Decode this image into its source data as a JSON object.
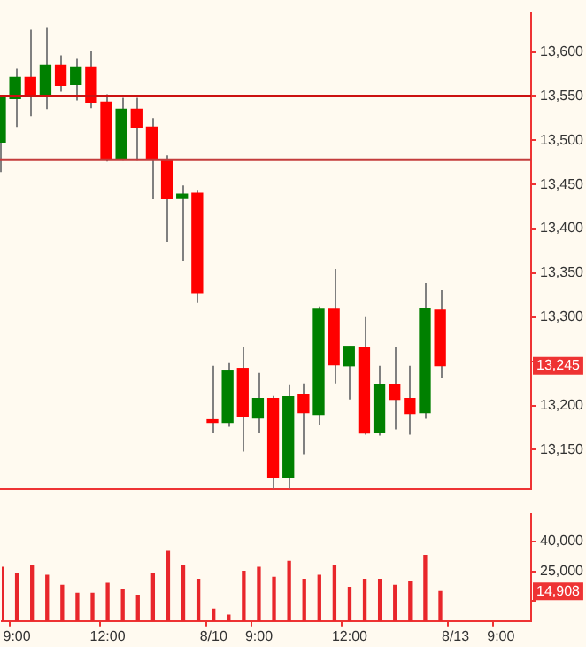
{
  "chart_data": [
    {
      "type": "candlestick",
      "categories": [
        null,
        null,
        null,
        null,
        null,
        null,
        null,
        null,
        null,
        null,
        null,
        null,
        null,
        null,
        null,
        null,
        null,
        null,
        null,
        null,
        null,
        null,
        null,
        null,
        null,
        null,
        null,
        null,
        null,
        null,
        null,
        null,
        null,
        null,
        null,
        null
      ],
      "ohlc": [
        [
          13498,
          13550,
          13464,
          13548
        ],
        [
          13547,
          13581,
          13515,
          13571
        ],
        [
          13571,
          13625,
          13527,
          13552
        ],
        [
          13552,
          13627,
          13535,
          13585
        ],
        [
          13585,
          13596,
          13555,
          13562
        ],
        [
          13563,
          13592,
          13545,
          13582
        ],
        [
          13582,
          13601,
          13536,
          13543
        ],
        [
          13543,
          13552,
          13476,
          13478
        ],
        [
          13480,
          13548,
          13477,
          13535
        ],
        [
          13535,
          13548,
          13477,
          13515
        ],
        [
          13515,
          13525,
          13434,
          13478
        ],
        [
          13478,
          13483,
          13385,
          13434
        ],
        [
          13435,
          13449,
          13364,
          13439
        ],
        [
          13440,
          13444,
          13316,
          13327
        ],
        [
          13184,
          13245,
          13169,
          13181
        ],
        [
          13181,
          13248,
          13176,
          13239
        ],
        [
          13242,
          13266,
          13148,
          13188
        ],
        [
          13186,
          13237,
          13169,
          13208
        ],
        [
          13208,
          13211,
          13106,
          13119
        ],
        [
          13119,
          13224,
          13106,
          13210
        ],
        [
          13213,
          13225,
          13145,
          13192
        ],
        [
          13190,
          13312,
          13178,
          13309
        ],
        [
          13309,
          13354,
          13225,
          13246
        ],
        [
          13245,
          13267,
          13207,
          13267
        ],
        [
          13266,
          13300,
          13167,
          13169
        ],
        [
          13170,
          13245,
          13166,
          13224
        ],
        [
          13224,
          13266,
          13173,
          13207
        ],
        [
          13208,
          13245,
          13167,
          13191
        ],
        [
          13192,
          13339,
          13185,
          13310
        ],
        [
          13308,
          13331,
          13231,
          13245
        ],
        null,
        null,
        null,
        null,
        null,
        null
      ],
      "colors": [
        "#008000",
        "#008000",
        "#ff0000",
        "#008000",
        "#ff0000",
        "#008000",
        "#ff0000",
        "#ff0000",
        "#008000",
        "#ff0000",
        "#ff0000",
        "#ff0000",
        "#008000",
        "#ff0000",
        "#ff0000",
        "#008000",
        "#ff0000",
        "#008000",
        "#ff0000",
        "#008000",
        "#ff0000",
        "#008000",
        "#ff0000",
        "#008000",
        "#ff0000",
        "#008000",
        "#ff0000",
        "#ff0000",
        "#008000",
        "#ff0000",
        null,
        null,
        null,
        null,
        null,
        null
      ],
      "ylim": [
        13105,
        13645
      ],
      "yticks": [
        {
          "value": 13600,
          "label": "13,600"
        },
        {
          "value": 13550,
          "label": "13,550"
        },
        {
          "value": 13500,
          "label": "13,500"
        },
        {
          "value": 13450,
          "label": "13,450"
        },
        {
          "value": 13400,
          "label": "13,400"
        },
        {
          "value": 13350,
          "label": "13,350"
        },
        {
          "value": 13300,
          "label": "13,300"
        },
        {
          "value": 13250,
          "label": null
        },
        {
          "value": 13200,
          "label": "13,200"
        },
        {
          "value": 13150,
          "label": "13,150"
        }
      ],
      "ref_lines": [
        {
          "axis": "y",
          "value": 13550,
          "color": "#cc1111"
        },
        {
          "axis": "y",
          "value": 13478,
          "color": "#c43c3c"
        }
      ],
      "annotations": [
        {
          "text": "13,245",
          "y": 13245
        }
      ],
      "tick_labels": "y",
      "grid": false,
      "legend": false
    },
    {
      "type": "bar",
      "categories": [
        null,
        "9:00",
        null,
        null,
        null,
        null,
        null,
        "12:00",
        null,
        null,
        null,
        null,
        null,
        null,
        "8/10",
        null,
        null,
        "9:00",
        null,
        null,
        null,
        null,
        null,
        "12:00",
        null,
        null,
        null,
        null,
        null,
        null,
        "8/13",
        null,
        null,
        "9:00",
        null,
        null
      ],
      "values": [
        27000,
        24000,
        28000,
        23000,
        18000,
        14000,
        14000,
        19000,
        16000,
        13000,
        24000,
        35000,
        28000,
        21000,
        6000,
        3000,
        25000,
        27000,
        22000,
        30000,
        21000,
        23000,
        28000,
        17000,
        21000,
        21000,
        18000,
        20000,
        33000,
        14908,
        null,
        null,
        null,
        null,
        null,
        null
      ],
      "color": "#e8262b",
      "ylim": [
        0,
        54000
      ],
      "yticks": [
        {
          "value": 40000,
          "label": "40,000"
        },
        {
          "value": 25000,
          "label": "25,000"
        },
        {
          "value": 10000,
          "label": null
        }
      ],
      "annotations": [
        {
          "text": "14,908",
          "y": 14908
        }
      ],
      "grid": false,
      "legend": false
    }
  ]
}
